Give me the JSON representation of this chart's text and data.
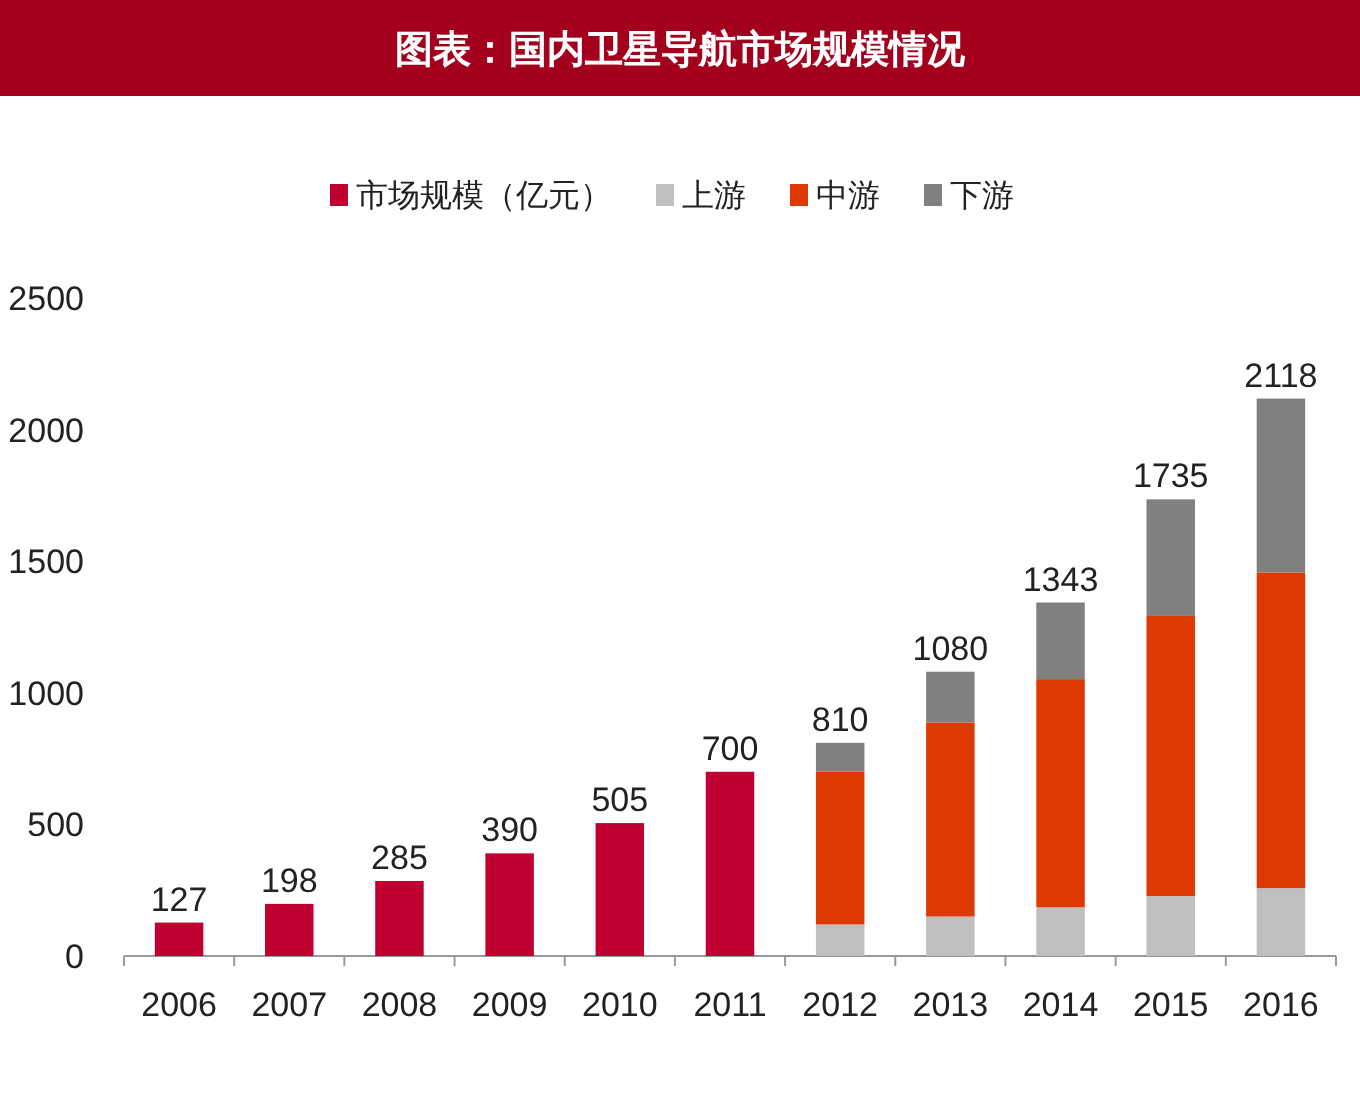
{
  "chart_data": {
    "type": "bar",
    "title": "图表：国内卫星导航市场规模情况",
    "categories": [
      "2006",
      "2007",
      "2008",
      "2009",
      "2010",
      "2011",
      "2012",
      "2013",
      "2014",
      "2015",
      "2016"
    ],
    "stacked": true,
    "legend": "top",
    "ylim": [
      0,
      2500
    ],
    "yticks": [
      0,
      500,
      1000,
      1500,
      2000,
      2500
    ],
    "series": [
      {
        "name": "市场规模（亿元）",
        "color": "#c00030",
        "values": [
          127,
          198,
          285,
          390,
          505,
          700,
          null,
          null,
          null,
          null,
          null
        ]
      },
      {
        "name": "上游",
        "color": "#bfbfbf",
        "values": [
          null,
          null,
          null,
          null,
          null,
          null,
          120,
          150,
          185,
          228,
          258
        ]
      },
      {
        "name": "中游",
        "color": "#de3a00",
        "values": [
          null,
          null,
          null,
          null,
          null,
          null,
          580,
          737,
          867,
          1064,
          1199
        ]
      },
      {
        "name": "下游",
        "color": "#808080",
        "values": [
          null,
          null,
          null,
          null,
          null,
          null,
          110,
          193,
          291,
          443,
          661
        ]
      }
    ],
    "totals": [
      "127",
      "198",
      "285",
      "390",
      "505",
      "700",
      "810",
      "1080",
      "1343",
      "1735",
      "2118"
    ]
  }
}
